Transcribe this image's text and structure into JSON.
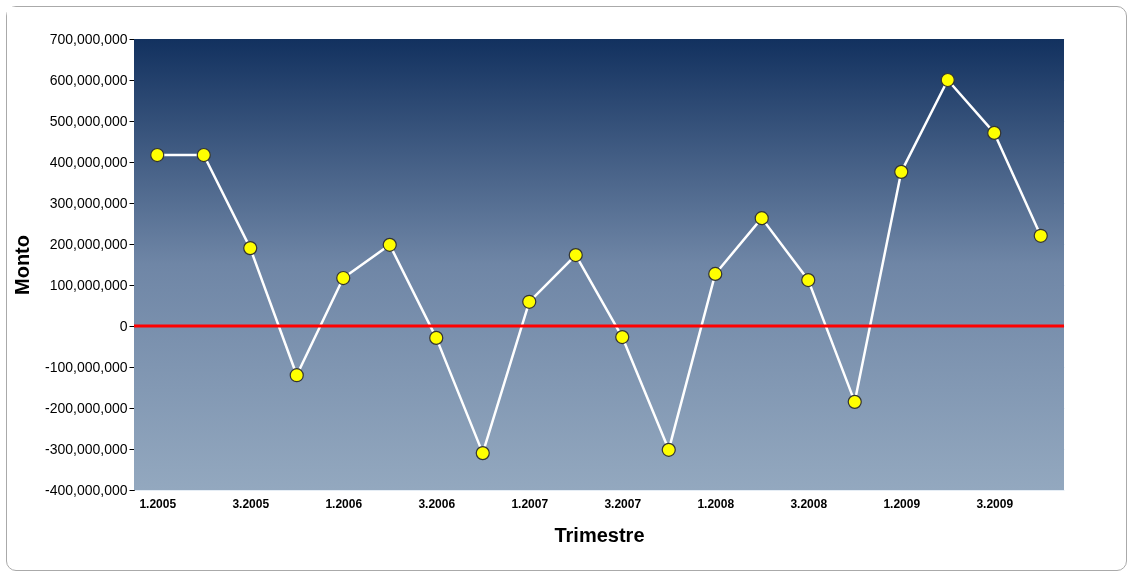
{
  "chart_data": {
    "type": "line",
    "xlabel": "Trimestre",
    "ylabel": "Monto",
    "categories": [
      "1.2005",
      null,
      "3.2005",
      null,
      "1.2006",
      null,
      "3.2006",
      null,
      "1.2007",
      null,
      "3.2007",
      null,
      "1.2008",
      null,
      "3.2008",
      null,
      "1.2009",
      null,
      "3.2009",
      null
    ],
    "series": [
      {
        "color": "#ffff00",
        "values": [
          417000000,
          417000000,
          190000000,
          -120000000,
          117000000,
          198000000,
          -29000000,
          -310000000,
          59000000,
          173000000,
          -27000000,
          -302000000,
          127000000,
          263000000,
          112000000,
          -185000000,
          376000000,
          600000000,
          471000000,
          220000000
        ]
      }
    ],
    "ylim": [
      -400000000,
      700000000
    ],
    "yticks": [
      {
        "value": -400000000,
        "label": "-400,000,000"
      },
      {
        "value": -300000000,
        "label": "-300,000,000"
      },
      {
        "value": -200000000,
        "label": "-200,000,000"
      },
      {
        "value": -100000000,
        "label": "-100,000,000"
      },
      {
        "value": 0,
        "label": "0"
      },
      {
        "value": 100000000,
        "label": "100,000,000"
      },
      {
        "value": 200000000,
        "label": "200,000,000"
      },
      {
        "value": 300000000,
        "label": "300,000,000"
      },
      {
        "value": 400000000,
        "label": "400,000,000"
      },
      {
        "value": 500000000,
        "label": "500,000,000"
      },
      {
        "value": 600000000,
        "label": "600,000,000"
      },
      {
        "value": 700000000,
        "label": "700,000,000"
      }
    ],
    "ref_lines": [
      {
        "axis": "y",
        "value": 0,
        "color": "#ff0000"
      }
    ],
    "grid": "y",
    "marker": "circle"
  }
}
